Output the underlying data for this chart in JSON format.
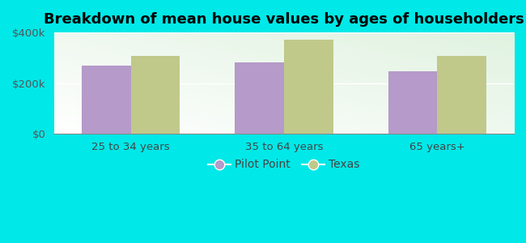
{
  "title": "Breakdown of mean house values by ages of householders",
  "categories": [
    "25 to 34 years",
    "35 to 64 years",
    "65 years+"
  ],
  "pilot_point_values": [
    270000,
    282000,
    248000
  ],
  "texas_values": [
    308000,
    372000,
    308000
  ],
  "pilot_point_color": "#b59aca",
  "texas_color": "#c0c98a",
  "background_color": "#00e8e8",
  "plot_bg_top": "#e8f5e8",
  "plot_bg_bottom": "#c8e8c0",
  "ylim": [
    0,
    400000
  ],
  "ytick_labels": [
    "$0",
    "$200k",
    "$400k"
  ],
  "ytick_values": [
    0,
    200000,
    400000
  ],
  "bar_width": 0.32,
  "legend_labels": [
    "Pilot Point",
    "Texas"
  ],
  "title_fontsize": 13,
  "tick_fontsize": 9.5,
  "legend_fontsize": 10,
  "grid_color": "#ffffff"
}
